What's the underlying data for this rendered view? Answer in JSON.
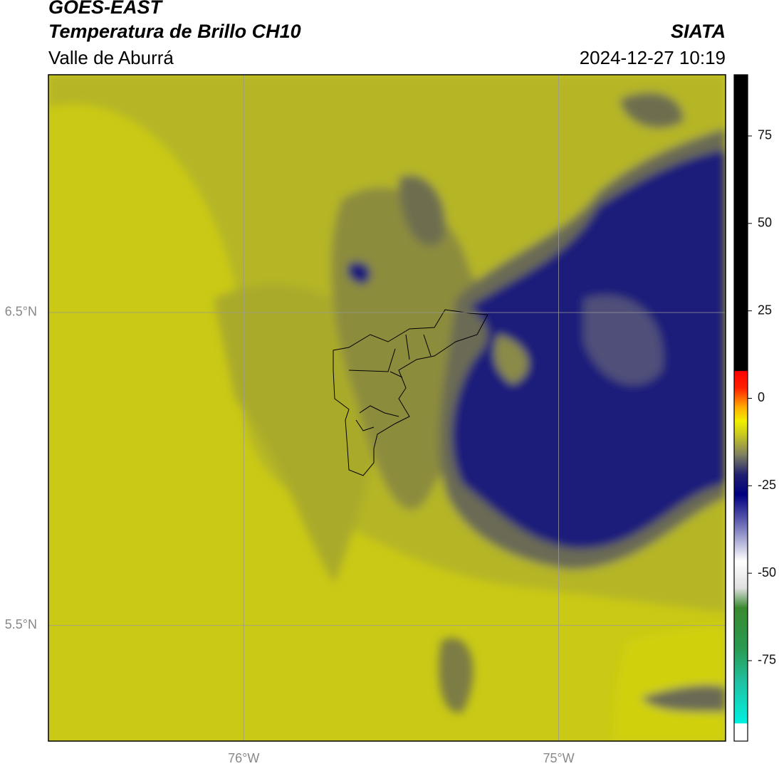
{
  "header": {
    "title": "GOES-EAST",
    "subtitle": "Temperatura de Brillo CH10",
    "region": "Valle de Aburrá",
    "source": "SIATA",
    "datetime": "2024-12-27 10:19"
  },
  "map": {
    "lon_range": [
      -76.62,
      -74.47
    ],
    "lat_range": [
      5.13,
      7.26
    ],
    "lon_ticks": [
      {
        "value": -76,
        "label": "76°W"
      },
      {
        "value": -75,
        "label": "75°W"
      }
    ],
    "lat_ticks": [
      {
        "value": 6.5,
        "label": "6.5°N"
      },
      {
        "value": 5.5,
        "label": "5.5°N"
      }
    ]
  },
  "colorbar": {
    "range": [
      -98,
      92.5
    ],
    "ticks": [
      75,
      50,
      25,
      0,
      -25,
      -50,
      -75
    ]
  }
}
